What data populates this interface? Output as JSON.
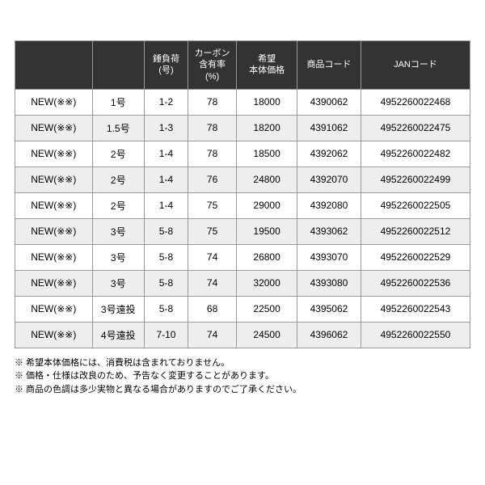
{
  "table": {
    "headers": [
      "",
      "",
      "錘負荷\n(号)",
      "カーボン\n含有率\n(%)",
      "希望\n本体価格",
      "商品コード",
      "JANコード"
    ],
    "rows": [
      {
        "cells": [
          "NEW(※※)",
          "1号",
          "1-2",
          "78",
          "18000",
          "4390062",
          "4952260022468"
        ]
      },
      {
        "cells": [
          "NEW(※※)",
          "1.5号",
          "1-3",
          "78",
          "18200",
          "4391062",
          "4952260022475"
        ]
      },
      {
        "cells": [
          "NEW(※※)",
          "2号",
          "1-4",
          "78",
          "18500",
          "4392062",
          "4952260022482"
        ]
      },
      {
        "cells": [
          "NEW(※※)",
          "2号",
          "1-4",
          "76",
          "24800",
          "4392070",
          "4952260022499"
        ]
      },
      {
        "cells": [
          "NEW(※※)",
          "2号",
          "1-4",
          "75",
          "29000",
          "4392080",
          "4952260022505"
        ]
      },
      {
        "cells": [
          "NEW(※※)",
          "3号",
          "5-8",
          "75",
          "19500",
          "4393062",
          "4952260022512"
        ]
      },
      {
        "cells": [
          "NEW(※※)",
          "3号",
          "5-8",
          "74",
          "26800",
          "4393070",
          "4952260022529"
        ]
      },
      {
        "cells": [
          "NEW(※※)",
          "3号",
          "5-8",
          "74",
          "32000",
          "4393080",
          "4952260022536"
        ]
      },
      {
        "cells": [
          "NEW(※※)",
          "3号遠投",
          "5-8",
          "68",
          "22500",
          "4395062",
          "4952260022543"
        ]
      },
      {
        "cells": [
          "NEW(※※)",
          "4号遠投",
          "7-10",
          "74",
          "24500",
          "4396062",
          "4952260022550"
        ]
      }
    ],
    "col_classes": [
      "col0",
      "col1",
      "col2",
      "col3",
      "col4",
      "col5",
      "col6"
    ]
  },
  "notes": [
    "※ 希望本体価格には、消費税は含まれておりません。",
    "※ 価格・仕様は改良のため、予告なく変更することがあります。",
    "※ 商品の色調は多少実物と異なる場合がありますのでご了承ください。"
  ]
}
